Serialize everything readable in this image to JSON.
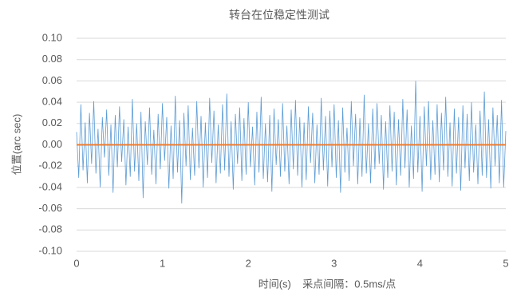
{
  "chart_data": {
    "type": "line",
    "title": "转台在位稳定性测试",
    "xlabel": "时间(s)    采点间隔：0.5ms/点",
    "ylabel": "位置(arc sec)",
    "xlim": [
      0,
      5
    ],
    "xticks": [
      0,
      1,
      2,
      3,
      4,
      5
    ],
    "ylim": [
      -0.1,
      0.1
    ],
    "yticks": [
      {
        "value": -0.1,
        "label": "-0.10"
      },
      {
        "value": -0.08,
        "label": "-0.08"
      },
      {
        "value": -0.06,
        "label": "-0.06"
      },
      {
        "value": -0.04,
        "label": "-0.04"
      },
      {
        "value": -0.02,
        "label": "-0.02"
      },
      {
        "value": 0,
        "label": "0.00"
      },
      {
        "value": 0.02,
        "label": "0.02"
      },
      {
        "value": 0.04,
        "label": "0.04"
      },
      {
        "value": 0.06,
        "label": "0.06"
      },
      {
        "value": 0.08,
        "label": "0.08"
      },
      {
        "value": 0.1,
        "label": "0.10"
      }
    ],
    "grid": true,
    "series": [
      {
        "color": "#5b9bd5",
        "x": [
          0,
          0.025,
          0.05,
          0.075,
          0.1,
          0.125,
          0.15,
          0.175,
          0.2,
          0.225,
          0.25,
          0.275,
          0.3,
          0.325,
          0.35,
          0.375,
          0.4,
          0.425,
          0.45,
          0.475,
          0.5,
          0.525,
          0.55,
          0.575,
          0.6,
          0.625,
          0.65,
          0.675,
          0.7,
          0.725,
          0.75,
          0.775,
          0.8,
          0.825,
          0.85,
          0.875,
          0.9,
          0.925,
          0.95,
          0.975,
          1,
          1.025,
          1.05,
          1.075,
          1.1,
          1.125,
          1.15,
          1.175,
          1.2,
          1.225,
          1.25,
          1.275,
          1.3,
          1.325,
          1.35,
          1.375,
          1.4,
          1.425,
          1.45,
          1.475,
          1.5,
          1.525,
          1.55,
          1.575,
          1.6,
          1.625,
          1.65,
          1.675,
          1.7,
          1.725,
          1.75,
          1.775,
          1.8,
          1.825,
          1.85,
          1.875,
          1.9,
          1.925,
          1.95,
          1.975,
          2,
          2.025,
          2.05,
          2.075,
          2.1,
          2.125,
          2.15,
          2.175,
          2.2,
          2.225,
          2.25,
          2.275,
          2.3,
          2.325,
          2.35,
          2.375,
          2.4,
          2.425,
          2.45,
          2.475,
          2.5,
          2.525,
          2.55,
          2.575,
          2.6,
          2.625,
          2.65,
          2.675,
          2.7,
          2.725,
          2.75,
          2.775,
          2.8,
          2.825,
          2.85,
          2.875,
          2.9,
          2.925,
          2.95,
          2.975,
          3,
          3.025,
          3.05,
          3.075,
          3.1,
          3.125,
          3.15,
          3.175,
          3.2,
          3.225,
          3.25,
          3.275,
          3.3,
          3.325,
          3.35,
          3.375,
          3.4,
          3.425,
          3.45,
          3.475,
          3.5,
          3.525,
          3.55,
          3.575,
          3.6,
          3.625,
          3.65,
          3.675,
          3.7,
          3.725,
          3.75,
          3.775,
          3.8,
          3.825,
          3.85,
          3.875,
          3.9,
          3.925,
          3.95,
          3.975,
          4,
          4.025,
          4.05,
          4.075,
          4.1,
          4.125,
          4.15,
          4.175,
          4.2,
          4.225,
          4.25,
          4.275,
          4.3,
          4.325,
          4.35,
          4.375,
          4.4,
          4.425,
          4.45,
          4.475,
          4.5,
          4.525,
          4.55,
          4.575,
          4.6,
          4.625,
          4.65,
          4.675,
          4.7,
          4.725,
          4.75,
          4.775,
          4.8,
          4.825,
          4.85,
          4.875,
          4.9,
          4.925,
          4.95,
          4.975,
          5
        ],
        "values": [
          0.012,
          -0.031,
          0.038,
          -0.024,
          0.021,
          -0.036,
          0.03,
          -0.018,
          0.041,
          -0.027,
          0.015,
          -0.04,
          0.026,
          -0.012,
          0.033,
          -0.029,
          0.019,
          -0.045,
          0.028,
          -0.021,
          0.036,
          -0.016,
          0.024,
          -0.038,
          0.017,
          -0.03,
          0.043,
          -0.025,
          0.02,
          -0.034,
          0.031,
          -0.05,
          0.022,
          -0.019,
          0.035,
          -0.028,
          0.014,
          -0.037,
          0.029,
          -0.023,
          0.039,
          -0.015,
          0.026,
          -0.041,
          0.018,
          -0.032,
          0.046,
          -0.026,
          0.023,
          -0.055,
          0.03,
          -0.02,
          0.037,
          -0.033,
          0.016,
          -0.029,
          0.041,
          -0.022,
          0.027,
          -0.04,
          0.021,
          -0.031,
          0.044,
          -0.017,
          0.032,
          -0.036,
          0.019,
          -0.027,
          0.038,
          -0.024,
          0.048,
          -0.03,
          0.022,
          -0.042,
          0.029,
          -0.018,
          0.035,
          -0.034,
          0.025,
          -0.028,
          0.04,
          -0.021,
          0.017,
          -0.038,
          0.031,
          -0.026,
          0.045,
          -0.032,
          0.02,
          -0.035,
          0.028,
          -0.044,
          0.034,
          -0.019,
          0.024,
          -0.03,
          0.039,
          -0.025,
          0.018,
          -0.037,
          0.033,
          -0.023,
          0.042,
          -0.029,
          0.026,
          -0.04,
          0.021,
          -0.033,
          0.036,
          -0.017,
          0.03,
          -0.036,
          0.019,
          -0.028,
          0.044,
          -0.024,
          0.027,
          -0.039,
          0.032,
          -0.021,
          0.038,
          -0.031,
          0.023,
          -0.045,
          0.035,
          -0.026,
          0.016,
          -0.034,
          0.041,
          -0.02,
          0.029,
          -0.037,
          0.025,
          -0.03,
          0.047,
          -0.027,
          0.02,
          -0.036,
          0.034,
          -0.023,
          0.039,
          -0.018,
          0.028,
          -0.042,
          0.022,
          -0.031,
          0.037,
          -0.025,
          0.031,
          -0.038,
          0.024,
          -0.029,
          0.043,
          -0.022,
          0.033,
          -0.04,
          0.018,
          -0.032,
          0.06,
          -0.026,
          0.027,
          -0.044,
          0.036,
          -0.02,
          0.041,
          -0.033,
          0.023,
          -0.028,
          0.038,
          -0.035,
          0.03,
          -0.024,
          0.045,
          -0.03,
          0.021,
          -0.039,
          0.034,
          -0.027,
          0.026,
          -0.043,
          0.037,
          -0.022,
          0.029,
          -0.034,
          0.04,
          -0.026,
          0.019,
          -0.037,
          0.032,
          -0.029,
          0.05,
          -0.031,
          0.024,
          -0.041,
          0.035,
          -0.02,
          0.028,
          -0.036,
          0.042,
          -0.04,
          0.013
        ]
      },
      {
        "color": "#ed7d31",
        "x": [
          0,
          5
        ],
        "values": [
          0,
          0
        ]
      }
    ]
  }
}
